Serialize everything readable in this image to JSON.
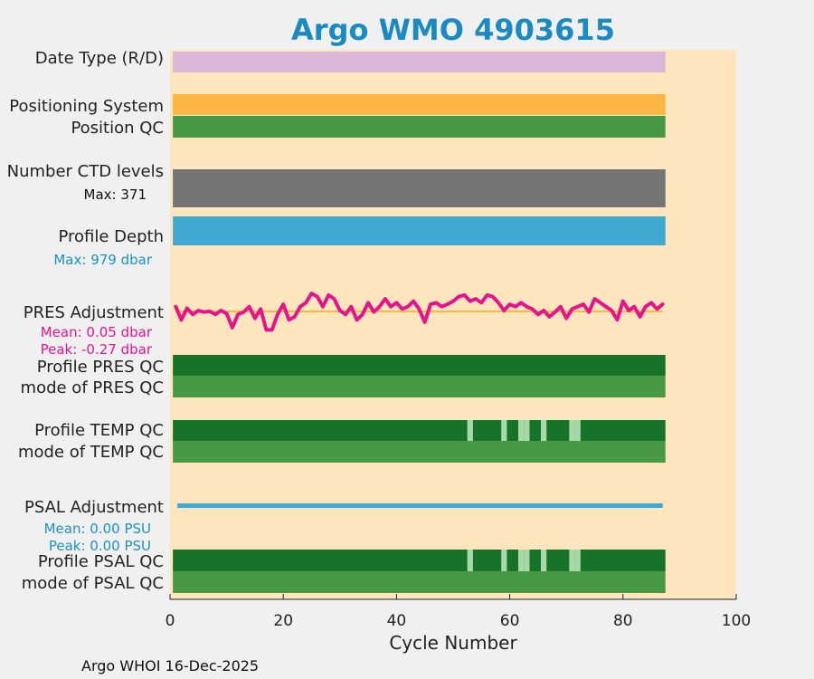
{
  "chart_data": {
    "type": "bar",
    "title": "Argo WMO 4903615",
    "xlabel": "Cycle Number",
    "xlim": [
      0,
      100
    ],
    "xticks": [
      0,
      20,
      40,
      60,
      80,
      100
    ],
    "cycles_range": [
      0.5,
      87.5
    ],
    "rows": [
      {
        "id": "date-type",
        "label": "Date Type (R/D)",
        "color": "#dab7d8"
      },
      {
        "id": "positioning-system",
        "label": "Positioning System",
        "color": "#fcb643"
      },
      {
        "id": "position-qc",
        "label": "Position QC",
        "color": "#489946"
      },
      {
        "id": "ctd-levels",
        "label": "Number CTD levels",
        "color": "#747474",
        "note": "Max: 371",
        "note_color": "#111111"
      },
      {
        "id": "profile-depth",
        "label": "Profile Depth",
        "color": "#40a9d1",
        "note": "Max:  979 dbar",
        "note_color": "#1a93c0"
      },
      {
        "id": "pres-adjustment",
        "label": "PRES Adjustment",
        "color": "#e6148c",
        "notes": [
          "Mean: 0.05 dbar",
          "Peak: -0.27 dbar"
        ]
      },
      {
        "id": "profile-pres-qc",
        "label": "Profile PRES QC",
        "color": "#17732a"
      },
      {
        "id": "mode-pres-qc",
        "label": "mode of PRES QC",
        "color": "#489946"
      },
      {
        "id": "profile-temp-qc",
        "label": "Profile TEMP QC",
        "color": "#17732a",
        "flag_color": "#a9d8a8",
        "flag_cycles": [
          53,
          59,
          62,
          63,
          66,
          71,
          72
        ]
      },
      {
        "id": "mode-temp-qc",
        "label": "mode of TEMP QC",
        "color": "#489946"
      },
      {
        "id": "psal-adjustment",
        "label": "PSAL Adjustment",
        "color": "#40a9d1",
        "notes": [
          "Mean: 0.00 PSU",
          "Peak: 0.00 PSU"
        ],
        "note_color": "#1a93c0"
      },
      {
        "id": "profile-psal-qc",
        "label": "Profile PSAL QC",
        "color": "#17732a",
        "flag_color": "#a9d8a8",
        "flag_cycles": [
          53,
          59,
          62,
          63,
          66,
          71,
          72
        ]
      },
      {
        "id": "mode-psal-qc",
        "label": "mode of PSAL QC",
        "color": "#489946"
      }
    ],
    "pres_adjustment_series": {
      "x": [
        1,
        2,
        3,
        4,
        5,
        6,
        7,
        8,
        9,
        10,
        11,
        12,
        13,
        14,
        15,
        16,
        17,
        18,
        19,
        20,
        21,
        22,
        23,
        24,
        25,
        26,
        27,
        28,
        29,
        30,
        31,
        32,
        33,
        34,
        35,
        36,
        37,
        38,
        39,
        40,
        41,
        42,
        43,
        44,
        45,
        46,
        47,
        48,
        49,
        50,
        51,
        52,
        53,
        54,
        55,
        56,
        57,
        58,
        59,
        60,
        61,
        62,
        63,
        64,
        65,
        66,
        67,
        68,
        69,
        70,
        71,
        72,
        73,
        74,
        75,
        76,
        77,
        78,
        79,
        80,
        81,
        82,
        83,
        84,
        85,
        86,
        87
      ],
      "y": [
        0.05,
        -0.12,
        0.03,
        -0.05,
        0.0,
        -0.02,
        -0.01,
        -0.05,
        0.0,
        -0.04,
        -0.22,
        -0.05,
        -0.02,
        0.05,
        -0.1,
        0.02,
        -0.25,
        -0.25,
        -0.05,
        0.08,
        -0.12,
        -0.08,
        0.05,
        0.1,
        0.22,
        0.18,
        0.05,
        0.2,
        0.15,
        0.0,
        -0.05,
        0.05,
        -0.12,
        -0.05,
        0.1,
        -0.02,
        0.05,
        0.15,
        0.05,
        0.1,
        0.02,
        0.05,
        0.12,
        0.02,
        -0.15,
        0.08,
        0.1,
        0.05,
        0.08,
        0.12,
        0.18,
        0.2,
        0.12,
        0.15,
        0.1,
        0.2,
        0.18,
        0.1,
        0.0,
        0.08,
        0.05,
        0.1,
        0.05,
        0.02,
        -0.05,
        0.0,
        -0.08,
        -0.02,
        0.05,
        -0.1,
        0.02,
        0.05,
        0.08,
        -0.02,
        0.15,
        0.1,
        0.05,
        0.0,
        -0.12,
        0.12,
        0.0,
        0.05,
        -0.08,
        0.05,
        0.1,
        0.02,
        0.08
      ],
      "color": "#e6148c",
      "line2_color": "#fcb643",
      "ylim": [
        -0.35,
        0.35
      ]
    },
    "footer": "Argo WHOI 16-Dec-2025"
  }
}
